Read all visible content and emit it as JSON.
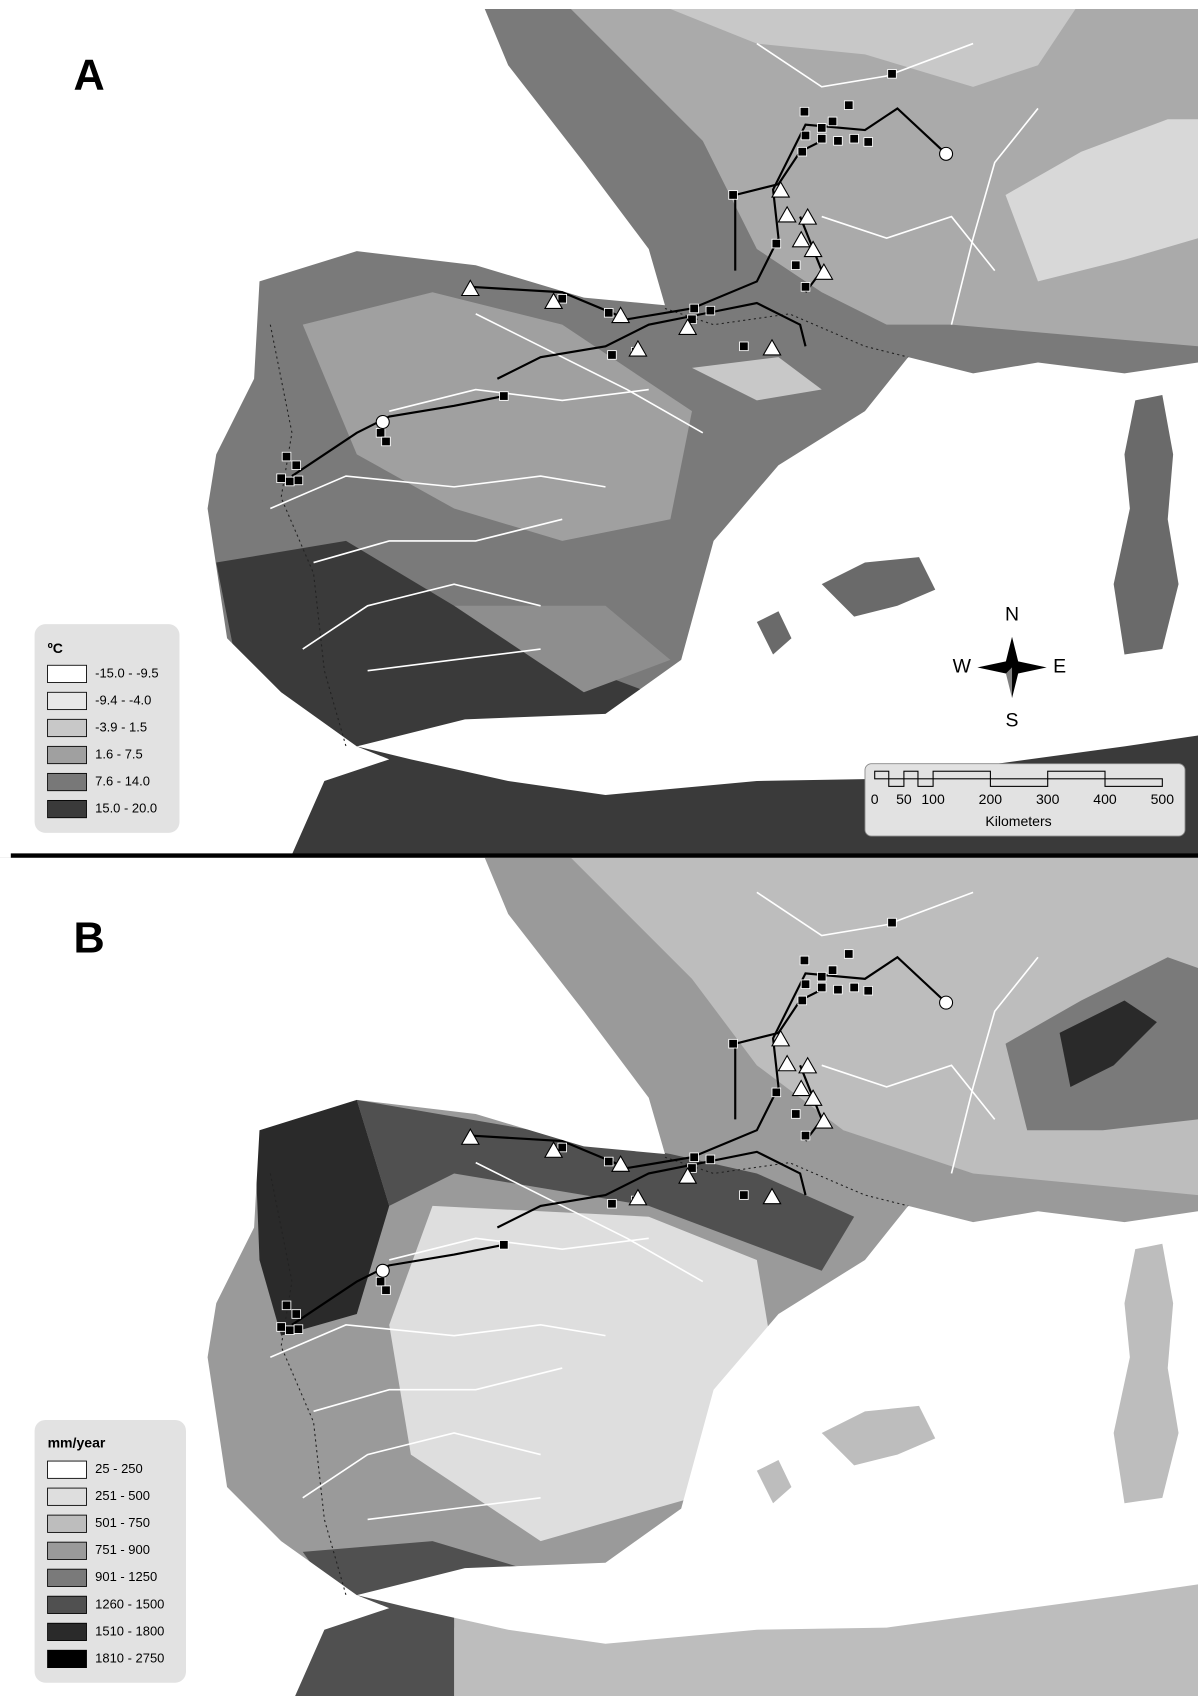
{
  "panels": [
    {
      "label": "A",
      "legend": {
        "title": "ºC",
        "items": [
          "-15.0 - -9.5",
          "-9.4 - -4.0",
          "-3.9 - 1.5",
          "1.6 - 7.5",
          "7.6 - 14.0",
          "15.0 - 20.0"
        ]
      },
      "compass": {
        "north": "N",
        "south": "S",
        "west": "W",
        "east": "E"
      },
      "scale_bar": {
        "ticks": [
          "0",
          "50",
          "100",
          "200",
          "300",
          "400",
          "500"
        ],
        "unit": "Kilometers"
      }
    },
    {
      "label": "B",
      "legend": {
        "title": "mm/year",
        "items": [
          "25 - 250",
          "251 - 500",
          "501 - 750",
          "751 - 900",
          "901 - 1250",
          "1260 - 1500",
          "1510 - 1800",
          "1810 - 2750"
        ]
      }
    }
  ]
}
